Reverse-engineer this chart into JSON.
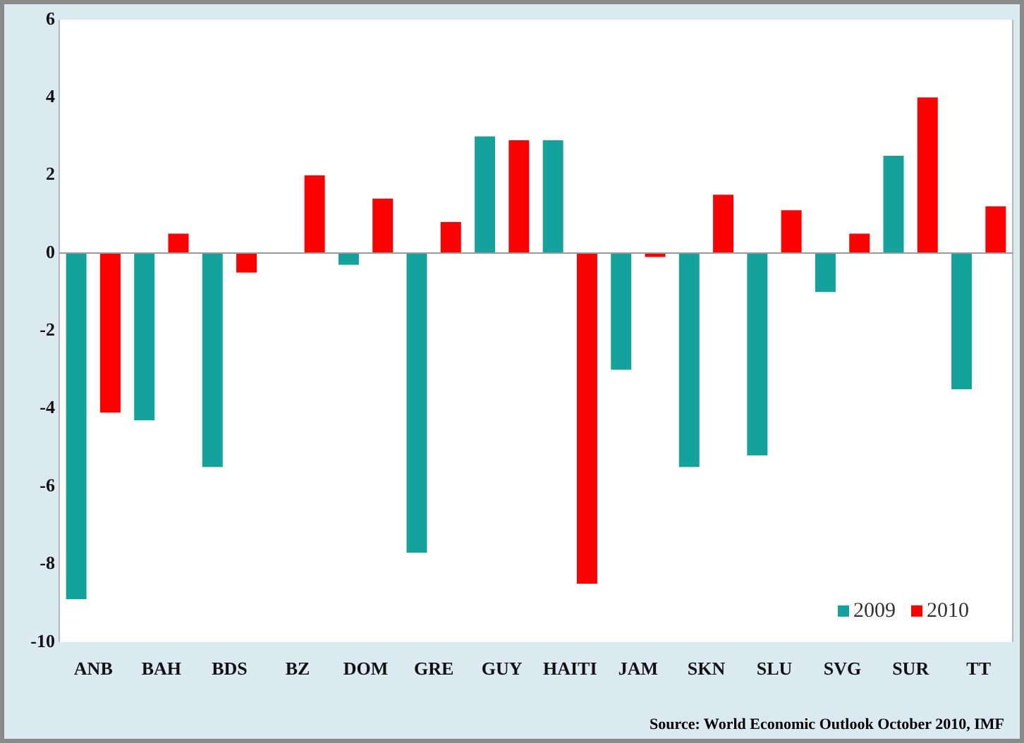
{
  "chart_data": {
    "type": "bar",
    "categories": [
      "ANB",
      "BAH",
      "BDS",
      "BZ",
      "DOM",
      "GRE",
      "GUY",
      "HAITI",
      "JAM",
      "SKN",
      "SLU",
      "SVG",
      "SUR",
      "TT"
    ],
    "series": [
      {
        "name": "2009",
        "color": "#13a39c",
        "values": [
          -8.9,
          -4.3,
          -5.5,
          null,
          -0.3,
          -7.7,
          3.0,
          2.9,
          -3.0,
          -5.5,
          -5.2,
          -1.0,
          2.5,
          -3.5
        ]
      },
      {
        "name": "2010",
        "color": "#ff0000",
        "values": [
          -4.1,
          0.5,
          -0.5,
          2.0,
          1.4,
          0.8,
          2.9,
          -8.5,
          -0.1,
          1.5,
          1.1,
          0.5,
          4.0,
          1.2
        ]
      }
    ],
    "ref_lines": [
      {
        "axis": "y",
        "value": 0,
        "color": "#999999"
      }
    ],
    "ylim": [
      -10,
      6
    ],
    "yticks": [
      -10,
      -8,
      -6,
      -4,
      -2,
      0,
      2,
      4,
      6
    ],
    "grid": false,
    "legend": "bottom right",
    "annotations": [
      "Source: World Economic Outlook October 2010, IMF"
    ]
  }
}
